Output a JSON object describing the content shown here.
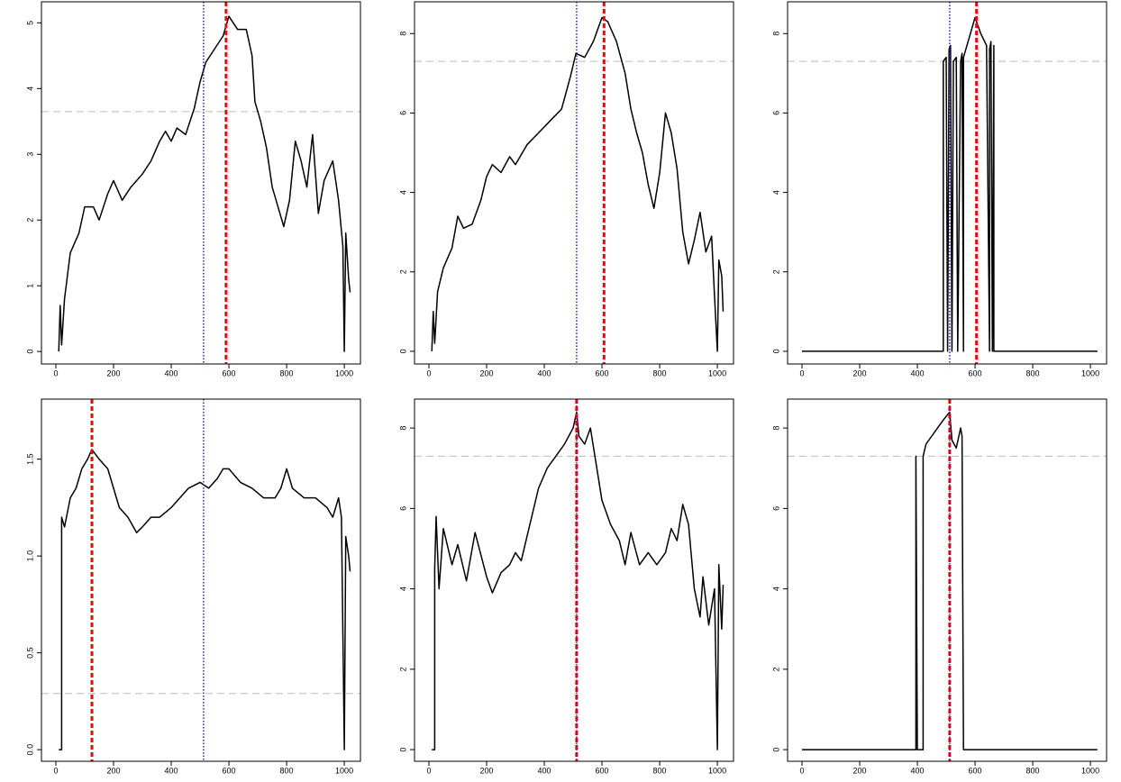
{
  "chart_data": [
    {
      "type": "line",
      "color": "#000000",
      "x": [
        10,
        15,
        20,
        30,
        50,
        80,
        100,
        130,
        150,
        180,
        200,
        230,
        260,
        300,
        330,
        360,
        380,
        400,
        420,
        450,
        480,
        500,
        520,
        550,
        580,
        600,
        630,
        660,
        680,
        690,
        710,
        730,
        750,
        770,
        790,
        810,
        830,
        850,
        870,
        890,
        910,
        930,
        960,
        980,
        995,
        1000,
        1005,
        1015,
        1020
      ],
      "values": [
        0,
        0.7,
        0.1,
        0.8,
        1.5,
        1.8,
        2.2,
        2.2,
        2.0,
        2.4,
        2.6,
        2.3,
        2.5,
        2.7,
        2.9,
        3.2,
        3.35,
        3.2,
        3.4,
        3.3,
        3.7,
        4.1,
        4.4,
        4.6,
        4.8,
        5.1,
        4.9,
        4.9,
        4.5,
        3.8,
        3.5,
        3.1,
        2.5,
        2.2,
        1.9,
        2.3,
        3.2,
        2.9,
        2.5,
        3.3,
        2.1,
        2.6,
        2.9,
        2.3,
        1.6,
        0,
        1.8,
        1.1,
        0.9
      ],
      "xlim": [
        -50,
        1056
      ],
      "ylim": [
        -0.19,
        5.32
      ],
      "xticks": [
        0,
        200,
        400,
        600,
        800,
        1000
      ],
      "yticks": [
        0,
        1,
        2,
        3,
        4,
        5
      ],
      "hline": {
        "value": 3.65,
        "color": "#bbbbbb"
      },
      "vlines": [
        {
          "value": 512,
          "color": "#4b0fd0"
        },
        {
          "value": 590,
          "color": "#ff0000"
        }
      ]
    },
    {
      "type": "line",
      "color": "#000000",
      "x": [
        10,
        15,
        20,
        30,
        50,
        80,
        100,
        120,
        150,
        180,
        200,
        220,
        250,
        280,
        300,
        340,
        380,
        420,
        460,
        490,
        510,
        540,
        570,
        600,
        620,
        650,
        680,
        700,
        720,
        740,
        760,
        780,
        800,
        820,
        840,
        860,
        880,
        900,
        920,
        940,
        960,
        980,
        990,
        1000,
        1005,
        1015,
        1020
      ],
      "values": [
        0,
        1.0,
        0.2,
        1.5,
        2.1,
        2.6,
        3.4,
        3.1,
        3.2,
        3.8,
        4.4,
        4.7,
        4.5,
        4.9,
        4.7,
        5.2,
        5.5,
        5.8,
        6.1,
        6.9,
        7.5,
        7.4,
        7.8,
        8.4,
        8.3,
        7.8,
        7.0,
        6.1,
        5.5,
        5.0,
        4.2,
        3.6,
        4.5,
        6.0,
        5.5,
        4.6,
        3.0,
        2.2,
        2.8,
        3.5,
        2.5,
        2.9,
        1.4,
        0,
        2.3,
        1.9,
        1.0
      ],
      "xlim": [
        -50,
        1056
      ],
      "ylim": [
        -0.32,
        8.8
      ],
      "xticks": [
        0,
        200,
        400,
        600,
        800,
        1000
      ],
      "yticks": [
        0,
        2,
        4,
        6,
        8
      ],
      "hline": {
        "value": 7.3,
        "color": "#bbbbbb"
      },
      "vlines": [
        {
          "value": 512,
          "color": "#4b0fd0"
        },
        {
          "value": 607,
          "color": "#ff0000"
        }
      ]
    },
    {
      "type": "line",
      "color": "#000000",
      "x": [
        0,
        490,
        490,
        500,
        505,
        510,
        515,
        520,
        525,
        535,
        540,
        550,
        555,
        560,
        560,
        580,
        600,
        620,
        640,
        650,
        650,
        655,
        660,
        665,
        665,
        1024
      ],
      "values": [
        0,
        0,
        7.3,
        7.4,
        0,
        7.6,
        7.7,
        0,
        7.3,
        7.4,
        0,
        7.3,
        7.5,
        0,
        7.4,
        7.9,
        8.4,
        8.0,
        7.7,
        0,
        7.6,
        7.8,
        0,
        7.7,
        0,
        0
      ],
      "xlim": [
        -50,
        1056
      ],
      "ylim": [
        -0.32,
        8.8
      ],
      "xticks": [
        0,
        200,
        400,
        600,
        800,
        1000
      ],
      "yticks": [
        0,
        2,
        4,
        6,
        8
      ],
      "hline": {
        "value": 7.3,
        "color": "#bbbbbb"
      },
      "vlines": [
        {
          "value": 512,
          "color": "#4b0fd0"
        },
        {
          "value": 605,
          "color": "#ff0000"
        }
      ]
    },
    {
      "type": "line",
      "color": "#000000",
      "x": [
        10,
        20,
        20,
        30,
        50,
        70,
        90,
        110,
        125,
        150,
        180,
        200,
        220,
        250,
        280,
        300,
        330,
        360,
        400,
        430,
        460,
        500,
        530,
        560,
        580,
        600,
        640,
        680,
        720,
        760,
        780,
        800,
        820,
        860,
        900,
        940,
        960,
        980,
        990,
        1000,
        1005,
        1015,
        1020
      ],
      "values": [
        0,
        0,
        1.2,
        1.15,
        1.3,
        1.35,
        1.45,
        1.5,
        1.55,
        1.5,
        1.45,
        1.35,
        1.25,
        1.2,
        1.12,
        1.15,
        1.2,
        1.2,
        1.25,
        1.3,
        1.35,
        1.38,
        1.35,
        1.4,
        1.45,
        1.45,
        1.38,
        1.35,
        1.3,
        1.3,
        1.35,
        1.45,
        1.35,
        1.3,
        1.3,
        1.25,
        1.2,
        1.3,
        1.2,
        0,
        1.1,
        1.0,
        0.92
      ],
      "xlim": [
        -50,
        1056
      ],
      "ylim": [
        -0.06,
        1.81
      ],
      "xticks": [
        0,
        200,
        400,
        600,
        800,
        1000
      ],
      "yticks": [
        {
          "value": 0,
          "label": "0.0"
        },
        0.5,
        {
          "value": 1,
          "label": "1.0"
        },
        1.5
      ],
      "hline": {
        "value": 0.29,
        "color": "#bbbbbb"
      },
      "vlines": [
        {
          "value": 125,
          "color": "#ff0000"
        },
        {
          "value": 512,
          "color": "#4b0fd0"
        }
      ]
    },
    {
      "type": "line",
      "color": "#000000",
      "x": [
        10,
        20,
        20,
        25,
        35,
        50,
        80,
        100,
        130,
        160,
        200,
        220,
        250,
        280,
        300,
        320,
        350,
        380,
        410,
        440,
        470,
        500,
        512,
        520,
        540,
        560,
        580,
        600,
        630,
        660,
        680,
        700,
        730,
        760,
        790,
        820,
        840,
        860,
        880,
        900,
        920,
        940,
        950,
        970,
        990,
        1000,
        1005,
        1015,
        1020
      ],
      "values": [
        0,
        0,
        4.5,
        5.8,
        4.0,
        5.5,
        4.6,
        5.1,
        4.2,
        5.4,
        4.3,
        3.9,
        4.4,
        4.6,
        4.9,
        4.7,
        5.6,
        6.5,
        7.0,
        7.3,
        7.6,
        8.0,
        8.4,
        7.8,
        7.6,
        8.0,
        7.1,
        6.2,
        5.6,
        5.2,
        4.6,
        5.4,
        4.6,
        4.9,
        4.6,
        4.9,
        5.5,
        5.2,
        6.1,
        5.6,
        4.0,
        3.3,
        4.3,
        3.1,
        4.0,
        0,
        4.6,
        3.0,
        4.1
      ],
      "xlim": [
        -50,
        1056
      ],
      "ylim": [
        -0.29,
        8.72
      ],
      "xticks": [
        0,
        200,
        400,
        600,
        800,
        1000
      ],
      "yticks": [
        0,
        2,
        4,
        6,
        8
      ],
      "hline": {
        "value": 7.3,
        "color": "#bbbbbb"
      },
      "vlines": [
        {
          "value": 512,
          "color": "#ff0000"
        },
        {
          "value": 512,
          "color": "#4b0fd0"
        }
      ]
    },
    {
      "type": "line",
      "color": "#000000",
      "x": [
        0,
        395,
        395,
        400,
        420,
        420,
        430,
        450,
        470,
        490,
        512,
        520,
        535,
        550,
        555,
        560,
        1024
      ],
      "values": [
        0,
        0,
        7.3,
        0,
        0,
        7.3,
        7.6,
        7.8,
        8.0,
        8.2,
        8.4,
        7.7,
        7.5,
        8.0,
        7.8,
        0,
        0
      ],
      "xlim": [
        -50,
        1056
      ],
      "ylim": [
        -0.29,
        8.72
      ],
      "xticks": [
        0,
        200,
        400,
        600,
        800,
        1000
      ],
      "yticks": [
        0,
        2,
        4,
        6,
        8
      ],
      "hline": {
        "value": 7.3,
        "color": "#bbbbbb"
      },
      "vlines": [
        {
          "value": 512,
          "color": "#ff0000"
        },
        {
          "value": 512,
          "color": "#4b0fd0"
        }
      ]
    }
  ]
}
